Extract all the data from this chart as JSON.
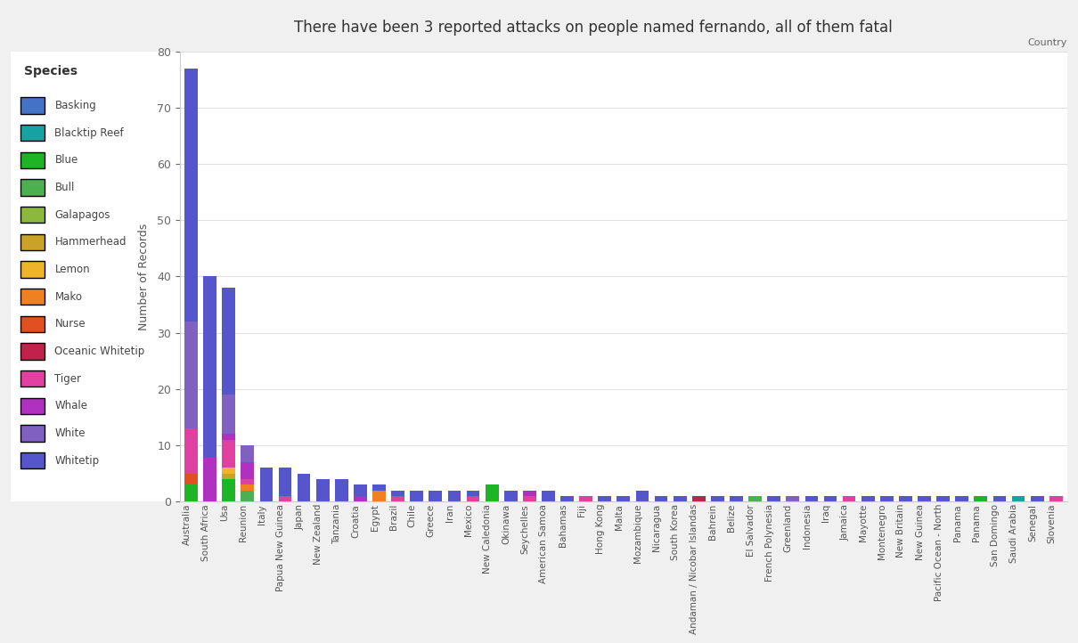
{
  "title": "There have been 3 reported attacks on people named fernando, all of them fatal",
  "xlabel": "Country",
  "ylabel": "Number of Records",
  "background_color": "#f0f0f0",
  "plot_background": "#ffffff",
  "species": [
    "Basking",
    "Blacktip Reef",
    "Blue",
    "Bull",
    "Galapagos",
    "Hammerhead",
    "Lemon",
    "Mako",
    "Nurse",
    "Oceanic Whitetip",
    "Tiger",
    "Whale",
    "White",
    "Whitetip"
  ],
  "species_colors": {
    "Basking": "#4472c4",
    "Blacktip Reef": "#17a2a2",
    "Blue": "#1db526",
    "Bull": "#4caf50",
    "Galapagos": "#8db83e",
    "Hammerhead": "#c9a227",
    "Lemon": "#f0b429",
    "Mako": "#f08020",
    "Nurse": "#e05020",
    "Oceanic Whitetip": "#c0224c",
    "Tiger": "#e040a0",
    "Whale": "#b030c0",
    "White": "#8060c0",
    "Whitetip": "#5555cc"
  },
  "data": {
    "Australia": {
      "Basking": 0,
      "Blacktip Reef": 0,
      "Blue": 3,
      "Bull": 0,
      "Galapagos": 0,
      "Hammerhead": 0,
      "Lemon": 0,
      "Mako": 0,
      "Nurse": 2,
      "Oceanic Whitetip": 0,
      "Tiger": 8,
      "Whale": 0,
      "White": 19,
      "Whitetip": 45
    },
    "South Africa": {
      "Basking": 0,
      "Blacktip Reef": 0,
      "Blue": 0,
      "Bull": 0,
      "Galapagos": 0,
      "Hammerhead": 0,
      "Lemon": 0,
      "Mako": 0,
      "Nurse": 0,
      "Oceanic Whitetip": 0,
      "Tiger": 0,
      "Whale": 8,
      "White": 0,
      "Whitetip": 32
    },
    "Usa": {
      "Basking": 0,
      "Blacktip Reef": 0,
      "Blue": 4,
      "Bull": 0,
      "Galapagos": 0,
      "Hammerhead": 1,
      "Lemon": 1,
      "Mako": 0,
      "Nurse": 0,
      "Oceanic Whitetip": 0,
      "Tiger": 5,
      "Whale": 1,
      "White": 7,
      "Whitetip": 19
    },
    "Reunion": {
      "Basking": 0,
      "Blacktip Reef": 0,
      "Blue": 0,
      "Bull": 2,
      "Galapagos": 0,
      "Hammerhead": 0,
      "Lemon": 0,
      "Mako": 1,
      "Nurse": 0,
      "Oceanic Whitetip": 0,
      "Tiger": 1,
      "Whale": 3,
      "White": 3,
      "Whitetip": 0
    },
    "Italy": {
      "Basking": 0,
      "Blacktip Reef": 0,
      "Blue": 0,
      "Bull": 0,
      "Galapagos": 0,
      "Hammerhead": 0,
      "Lemon": 0,
      "Mako": 0,
      "Nurse": 0,
      "Oceanic Whitetip": 0,
      "Tiger": 0,
      "Whale": 0,
      "White": 0,
      "Whitetip": 6
    },
    "Papua New Guinea": {
      "Basking": 0,
      "Blacktip Reef": 0,
      "Blue": 0,
      "Bull": 0,
      "Galapagos": 0,
      "Hammerhead": 0,
      "Lemon": 0,
      "Mako": 0,
      "Nurse": 0,
      "Oceanic Whitetip": 0,
      "Tiger": 1,
      "Whale": 0,
      "White": 0,
      "Whitetip": 5
    },
    "Japan": {
      "Basking": 0,
      "Blacktip Reef": 0,
      "Blue": 0,
      "Bull": 0,
      "Galapagos": 0,
      "Hammerhead": 0,
      "Lemon": 0,
      "Mako": 0,
      "Nurse": 0,
      "Oceanic Whitetip": 0,
      "Tiger": 0,
      "Whale": 0,
      "White": 0,
      "Whitetip": 5
    },
    "New Zealand": {
      "Basking": 0,
      "Blacktip Reef": 0,
      "Blue": 0,
      "Bull": 0,
      "Galapagos": 0,
      "Hammerhead": 0,
      "Lemon": 0,
      "Mako": 0,
      "Nurse": 0,
      "Oceanic Whitetip": 0,
      "Tiger": 0,
      "Whale": 0,
      "White": 0,
      "Whitetip": 4
    },
    "Tanzania": {
      "Basking": 0,
      "Blacktip Reef": 0,
      "Blue": 0,
      "Bull": 0,
      "Galapagos": 0,
      "Hammerhead": 0,
      "Lemon": 0,
      "Mako": 0,
      "Nurse": 0,
      "Oceanic Whitetip": 0,
      "Tiger": 0,
      "Whale": 0,
      "White": 0,
      "Whitetip": 4
    },
    "Croatia": {
      "Basking": 0,
      "Blacktip Reef": 0,
      "Blue": 0,
      "Bull": 0,
      "Galapagos": 0,
      "Hammerhead": 0,
      "Lemon": 0,
      "Mako": 0,
      "Nurse": 0,
      "Oceanic Whitetip": 0,
      "Tiger": 0,
      "Whale": 1,
      "White": 0,
      "Whitetip": 2
    },
    "Egypt": {
      "Basking": 0,
      "Blacktip Reef": 0,
      "Blue": 0,
      "Bull": 0,
      "Galapagos": 0,
      "Hammerhead": 0,
      "Lemon": 0,
      "Mako": 2,
      "Nurse": 0,
      "Oceanic Whitetip": 0,
      "Tiger": 0,
      "Whale": 0,
      "White": 0,
      "Whitetip": 1
    },
    "Brazil": {
      "Basking": 0,
      "Blacktip Reef": 0,
      "Blue": 0,
      "Bull": 0,
      "Galapagos": 0,
      "Hammerhead": 0,
      "Lemon": 0,
      "Mako": 0,
      "Nurse": 0,
      "Oceanic Whitetip": 0,
      "Tiger": 1,
      "Whale": 0,
      "White": 0,
      "Whitetip": 1
    },
    "Chile": {
      "Basking": 0,
      "Blacktip Reef": 0,
      "Blue": 0,
      "Bull": 0,
      "Galapagos": 0,
      "Hammerhead": 0,
      "Lemon": 0,
      "Mako": 0,
      "Nurse": 0,
      "Oceanic Whitetip": 0,
      "Tiger": 0,
      "Whale": 0,
      "White": 0,
      "Whitetip": 2
    },
    "Greece": {
      "Basking": 0,
      "Blacktip Reef": 0,
      "Blue": 0,
      "Bull": 0,
      "Galapagos": 0,
      "Hammerhead": 0,
      "Lemon": 0,
      "Mako": 0,
      "Nurse": 0,
      "Oceanic Whitetip": 0,
      "Tiger": 0,
      "Whale": 0,
      "White": 0,
      "Whitetip": 2
    },
    "Iran": {
      "Basking": 0,
      "Blacktip Reef": 0,
      "Blue": 0,
      "Bull": 0,
      "Galapagos": 0,
      "Hammerhead": 0,
      "Lemon": 0,
      "Mako": 0,
      "Nurse": 0,
      "Oceanic Whitetip": 0,
      "Tiger": 0,
      "Whale": 0,
      "White": 0,
      "Whitetip": 2
    },
    "Mexico": {
      "Basking": 0,
      "Blacktip Reef": 0,
      "Blue": 0,
      "Bull": 0,
      "Galapagos": 0,
      "Hammerhead": 0,
      "Lemon": 0,
      "Mako": 0,
      "Nurse": 0,
      "Oceanic Whitetip": 0,
      "Tiger": 1,
      "Whale": 0,
      "White": 0,
      "Whitetip": 1
    },
    "New Caledonia": {
      "Basking": 0,
      "Blacktip Reef": 0,
      "Blue": 3,
      "Bull": 0,
      "Galapagos": 0,
      "Hammerhead": 0,
      "Lemon": 0,
      "Mako": 0,
      "Nurse": 0,
      "Oceanic Whitetip": 0,
      "Tiger": 0,
      "Whale": 0,
      "White": 0,
      "Whitetip": 0
    },
    "Okinawa": {
      "Basking": 0,
      "Blacktip Reef": 0,
      "Blue": 0,
      "Bull": 0,
      "Galapagos": 0,
      "Hammerhead": 0,
      "Lemon": 0,
      "Mako": 0,
      "Nurse": 0,
      "Oceanic Whitetip": 0,
      "Tiger": 0,
      "Whale": 0,
      "White": 0,
      "Whitetip": 2
    },
    "Seychelles": {
      "Basking": 0,
      "Blacktip Reef": 0,
      "Blue": 0,
      "Bull": 0,
      "Galapagos": 0,
      "Hammerhead": 0,
      "Lemon": 0,
      "Mako": 0,
      "Nurse": 0,
      "Oceanic Whitetip": 0,
      "Tiger": 1,
      "Whale": 1,
      "White": 0,
      "Whitetip": 0
    },
    "American Samoa": {
      "Basking": 0,
      "Blacktip Reef": 0,
      "Blue": 0,
      "Bull": 0,
      "Galapagos": 0,
      "Hammerhead": 0,
      "Lemon": 0,
      "Mako": 0,
      "Nurse": 0,
      "Oceanic Whitetip": 0,
      "Tiger": 0,
      "Whale": 0,
      "White": 0,
      "Whitetip": 2
    },
    "Bahamas": {
      "Basking": 0,
      "Blacktip Reef": 0,
      "Blue": 0,
      "Bull": 0,
      "Galapagos": 0,
      "Hammerhead": 0,
      "Lemon": 0,
      "Mako": 0,
      "Nurse": 0,
      "Oceanic Whitetip": 0,
      "Tiger": 0,
      "Whale": 0,
      "White": 0,
      "Whitetip": 1
    },
    "Fiji": {
      "Basking": 0,
      "Blacktip Reef": 0,
      "Blue": 0,
      "Bull": 0,
      "Galapagos": 0,
      "Hammerhead": 0,
      "Lemon": 0,
      "Mako": 0,
      "Nurse": 0,
      "Oceanic Whitetip": 0,
      "Tiger": 1,
      "Whale": 0,
      "White": 0,
      "Whitetip": 0
    },
    "Hong Kong": {
      "Basking": 0,
      "Blacktip Reef": 0,
      "Blue": 0,
      "Bull": 0,
      "Galapagos": 0,
      "Hammerhead": 0,
      "Lemon": 0,
      "Mako": 0,
      "Nurse": 0,
      "Oceanic Whitetip": 0,
      "Tiger": 0,
      "Whale": 0,
      "White": 0,
      "Whitetip": 1
    },
    "Malta": {
      "Basking": 0,
      "Blacktip Reef": 0,
      "Blue": 0,
      "Bull": 0,
      "Galapagos": 0,
      "Hammerhead": 0,
      "Lemon": 0,
      "Mako": 0,
      "Nurse": 0,
      "Oceanic Whitetip": 0,
      "Tiger": 0,
      "Whale": 0,
      "White": 0,
      "Whitetip": 1
    },
    "Mozambique": {
      "Basking": 0,
      "Blacktip Reef": 0,
      "Blue": 0,
      "Bull": 0,
      "Galapagos": 0,
      "Hammerhead": 0,
      "Lemon": 0,
      "Mako": 0,
      "Nurse": 0,
      "Oceanic Whitetip": 0,
      "Tiger": 0,
      "Whale": 0,
      "White": 0,
      "Whitetip": 2
    },
    "Nicaragua": {
      "Basking": 0,
      "Blacktip Reef": 0,
      "Blue": 0,
      "Bull": 0,
      "Galapagos": 0,
      "Hammerhead": 0,
      "Lemon": 0,
      "Mako": 0,
      "Nurse": 0,
      "Oceanic Whitetip": 0,
      "Tiger": 0,
      "Whale": 0,
      "White": 0,
      "Whitetip": 1
    },
    "South Korea": {
      "Basking": 0,
      "Blacktip Reef": 0,
      "Blue": 0,
      "Bull": 0,
      "Galapagos": 0,
      "Hammerhead": 0,
      "Lemon": 0,
      "Mako": 0,
      "Nurse": 0,
      "Oceanic Whitetip": 0,
      "Tiger": 0,
      "Whale": 0,
      "White": 0,
      "Whitetip": 1
    },
    "Andaman / Nicobar Islandas": {
      "Basking": 0,
      "Blacktip Reef": 0,
      "Blue": 0,
      "Bull": 0,
      "Galapagos": 0,
      "Hammerhead": 0,
      "Lemon": 0,
      "Mako": 0,
      "Nurse": 0,
      "Oceanic Whitetip": 1,
      "Tiger": 0,
      "Whale": 0,
      "White": 0,
      "Whitetip": 0
    },
    "Bahrein": {
      "Basking": 0,
      "Blacktip Reef": 0,
      "Blue": 0,
      "Bull": 0,
      "Galapagos": 0,
      "Hammerhead": 0,
      "Lemon": 0,
      "Mako": 0,
      "Nurse": 0,
      "Oceanic Whitetip": 0,
      "Tiger": 0,
      "Whale": 0,
      "White": 0,
      "Whitetip": 1
    },
    "Belize": {
      "Basking": 0,
      "Blacktip Reef": 0,
      "Blue": 0,
      "Bull": 0,
      "Galapagos": 0,
      "Hammerhead": 0,
      "Lemon": 0,
      "Mako": 0,
      "Nurse": 0,
      "Oceanic Whitetip": 0,
      "Tiger": 0,
      "Whale": 0,
      "White": 0,
      "Whitetip": 1
    },
    "El Salvador": {
      "Basking": 0,
      "Blacktip Reef": 0,
      "Blue": 0,
      "Bull": 1,
      "Galapagos": 0,
      "Hammerhead": 0,
      "Lemon": 0,
      "Mako": 0,
      "Nurse": 0,
      "Oceanic Whitetip": 0,
      "Tiger": 0,
      "Whale": 0,
      "White": 0,
      "Whitetip": 0
    },
    "French Polynesia": {
      "Basking": 0,
      "Blacktip Reef": 0,
      "Blue": 0,
      "Bull": 0,
      "Galapagos": 0,
      "Hammerhead": 0,
      "Lemon": 0,
      "Mako": 0,
      "Nurse": 0,
      "Oceanic Whitetip": 0,
      "Tiger": 0,
      "Whale": 0,
      "White": 0,
      "Whitetip": 1
    },
    "Greenland": {
      "Basking": 0,
      "Blacktip Reef": 0,
      "Blue": 0,
      "Bull": 0,
      "Galapagos": 0,
      "Hammerhead": 0,
      "Lemon": 0,
      "Mako": 0,
      "Nurse": 0,
      "Oceanic Whitetip": 0,
      "Tiger": 0,
      "Whale": 0,
      "White": 1,
      "Whitetip": 0
    },
    "Indonesia": {
      "Basking": 0,
      "Blacktip Reef": 0,
      "Blue": 0,
      "Bull": 0,
      "Galapagos": 0,
      "Hammerhead": 0,
      "Lemon": 0,
      "Mako": 0,
      "Nurse": 0,
      "Oceanic Whitetip": 0,
      "Tiger": 0,
      "Whale": 0,
      "White": 0,
      "Whitetip": 1
    },
    "Iraq": {
      "Basking": 0,
      "Blacktip Reef": 0,
      "Blue": 0,
      "Bull": 0,
      "Galapagos": 0,
      "Hammerhead": 0,
      "Lemon": 0,
      "Mako": 0,
      "Nurse": 0,
      "Oceanic Whitetip": 0,
      "Tiger": 0,
      "Whale": 0,
      "White": 0,
      "Whitetip": 1
    },
    "Jamaica": {
      "Basking": 0,
      "Blacktip Reef": 0,
      "Blue": 0,
      "Bull": 0,
      "Galapagos": 0,
      "Hammerhead": 0,
      "Lemon": 0,
      "Mako": 0,
      "Nurse": 0,
      "Oceanic Whitetip": 0,
      "Tiger": 1,
      "Whale": 0,
      "White": 0,
      "Whitetip": 0
    },
    "Mayotte": {
      "Basking": 0,
      "Blacktip Reef": 0,
      "Blue": 0,
      "Bull": 0,
      "Galapagos": 0,
      "Hammerhead": 0,
      "Lemon": 0,
      "Mako": 0,
      "Nurse": 0,
      "Oceanic Whitetip": 0,
      "Tiger": 0,
      "Whale": 0,
      "White": 0,
      "Whitetip": 1
    },
    "Montenegro": {
      "Basking": 0,
      "Blacktip Reef": 0,
      "Blue": 0,
      "Bull": 0,
      "Galapagos": 0,
      "Hammerhead": 0,
      "Lemon": 0,
      "Mako": 0,
      "Nurse": 0,
      "Oceanic Whitetip": 0,
      "Tiger": 0,
      "Whale": 0,
      "White": 0,
      "Whitetip": 1
    },
    "New Britain": {
      "Basking": 0,
      "Blacktip Reef": 0,
      "Blue": 0,
      "Bull": 0,
      "Galapagos": 0,
      "Hammerhead": 0,
      "Lemon": 0,
      "Mako": 0,
      "Nurse": 0,
      "Oceanic Whitetip": 0,
      "Tiger": 0,
      "Whale": 0,
      "White": 0,
      "Whitetip": 1
    },
    "New Guinea": {
      "Basking": 0,
      "Blacktip Reef": 0,
      "Blue": 0,
      "Bull": 0,
      "Galapagos": 0,
      "Hammerhead": 0,
      "Lemon": 0,
      "Mako": 0,
      "Nurse": 0,
      "Oceanic Whitetip": 0,
      "Tiger": 0,
      "Whale": 0,
      "White": 0,
      "Whitetip": 1
    },
    "Pacific Ocean - North": {
      "Basking": 0,
      "Blacktip Reef": 0,
      "Blue": 0,
      "Bull": 0,
      "Galapagos": 0,
      "Hammerhead": 0,
      "Lemon": 0,
      "Mako": 0,
      "Nurse": 0,
      "Oceanic Whitetip": 0,
      "Tiger": 0,
      "Whale": 0,
      "White": 0,
      "Whitetip": 1
    },
    "Panama": {
      "Basking": 0,
      "Blacktip Reef": 0,
      "Blue": 0,
      "Bull": 0,
      "Galapagos": 0,
      "Hammerhead": 0,
      "Lemon": 0,
      "Mako": 0,
      "Nurse": 0,
      "Oceanic Whitetip": 0,
      "Tiger": 0,
      "Whale": 0,
      "White": 0,
      "Whitetip": 1
    },
    "Panama2": {
      "Basking": 0,
      "Blacktip Reef": 0,
      "Blue": 1,
      "Bull": 0,
      "Galapagos": 0,
      "Hammerhead": 0,
      "Lemon": 0,
      "Mako": 0,
      "Nurse": 0,
      "Oceanic Whitetip": 0,
      "Tiger": 0,
      "Whale": 0,
      "White": 0,
      "Whitetip": 0
    },
    "San Domingo": {
      "Basking": 0,
      "Blacktip Reef": 0,
      "Blue": 0,
      "Bull": 0,
      "Galapagos": 0,
      "Hammerhead": 0,
      "Lemon": 0,
      "Mako": 0,
      "Nurse": 0,
      "Oceanic Whitetip": 0,
      "Tiger": 0,
      "Whale": 0,
      "White": 0,
      "Whitetip": 1
    },
    "Saudi Arabia": {
      "Basking": 0,
      "Blacktip Reef": 1,
      "Blue": 0,
      "Bull": 0,
      "Galapagos": 0,
      "Hammerhead": 0,
      "Lemon": 0,
      "Mako": 0,
      "Nurse": 0,
      "Oceanic Whitetip": 0,
      "Tiger": 0,
      "Whale": 0,
      "White": 0,
      "Whitetip": 0
    },
    "Senegal": {
      "Basking": 0,
      "Blacktip Reef": 0,
      "Blue": 0,
      "Bull": 0,
      "Galapagos": 0,
      "Hammerhead": 0,
      "Lemon": 0,
      "Mako": 0,
      "Nurse": 0,
      "Oceanic Whitetip": 0,
      "Tiger": 0,
      "Whale": 0,
      "White": 0,
      "Whitetip": 1
    },
    "Slovenia": {
      "Basking": 0,
      "Blacktip Reef": 0,
      "Blue": 0,
      "Bull": 0,
      "Galapagos": 0,
      "Hammerhead": 0,
      "Lemon": 0,
      "Mako": 0,
      "Nurse": 0,
      "Oceanic Whitetip": 0,
      "Tiger": 1,
      "Whale": 0,
      "White": 0,
      "Whitetip": 0
    }
  },
  "ylim": [
    0,
    80
  ],
  "yticks": [
    0,
    10,
    20,
    30,
    40,
    50,
    60,
    70,
    80
  ]
}
